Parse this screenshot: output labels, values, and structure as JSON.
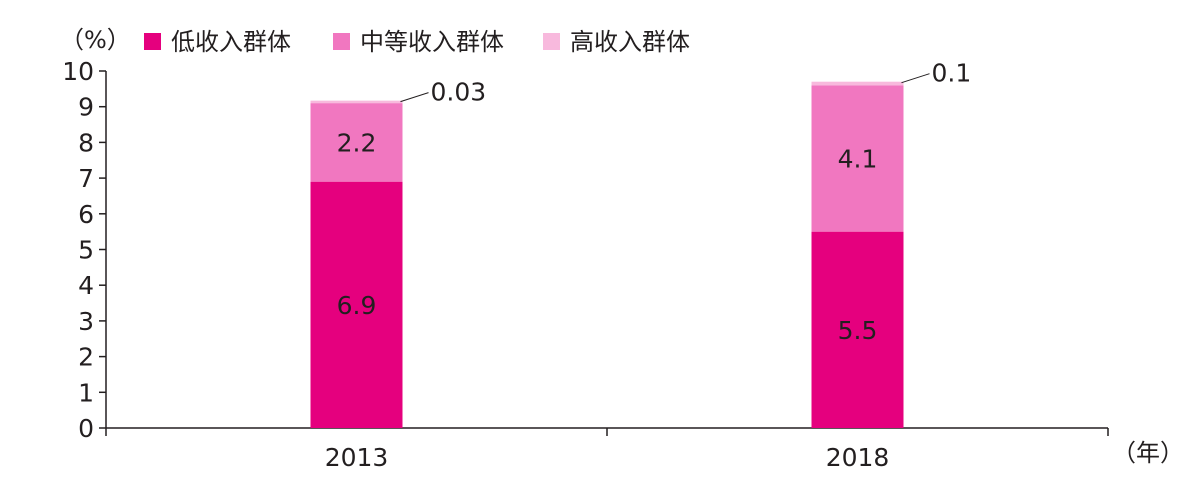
{
  "chart_data": {
    "type": "bar",
    "stacked": true,
    "categories": [
      "2013",
      "2018"
    ],
    "series": [
      {
        "name": "低收入群体",
        "values": [
          6.9,
          5.5
        ],
        "color": "#e5007e"
      },
      {
        "name": "中等收入群体",
        "values": [
          2.2,
          4.1
        ],
        "color": "#f177c0"
      },
      {
        "name": "高收入群体",
        "values": [
          0.03,
          0.1
        ],
        "color": "#f8b9dd"
      }
    ],
    "data_labels": [
      [
        "6.9",
        "5.5"
      ],
      [
        "2.2",
        "4.1"
      ],
      [
        "0.03",
        "0.1"
      ]
    ],
    "ylabel": "（%）",
    "xlabel": "（年）",
    "ylim": [
      0,
      10
    ],
    "yticks": [
      "0",
      "1",
      "2",
      "3",
      "4",
      "5",
      "6",
      "7",
      "8",
      "9",
      "10"
    ],
    "grid": false,
    "legend_position": "top"
  }
}
